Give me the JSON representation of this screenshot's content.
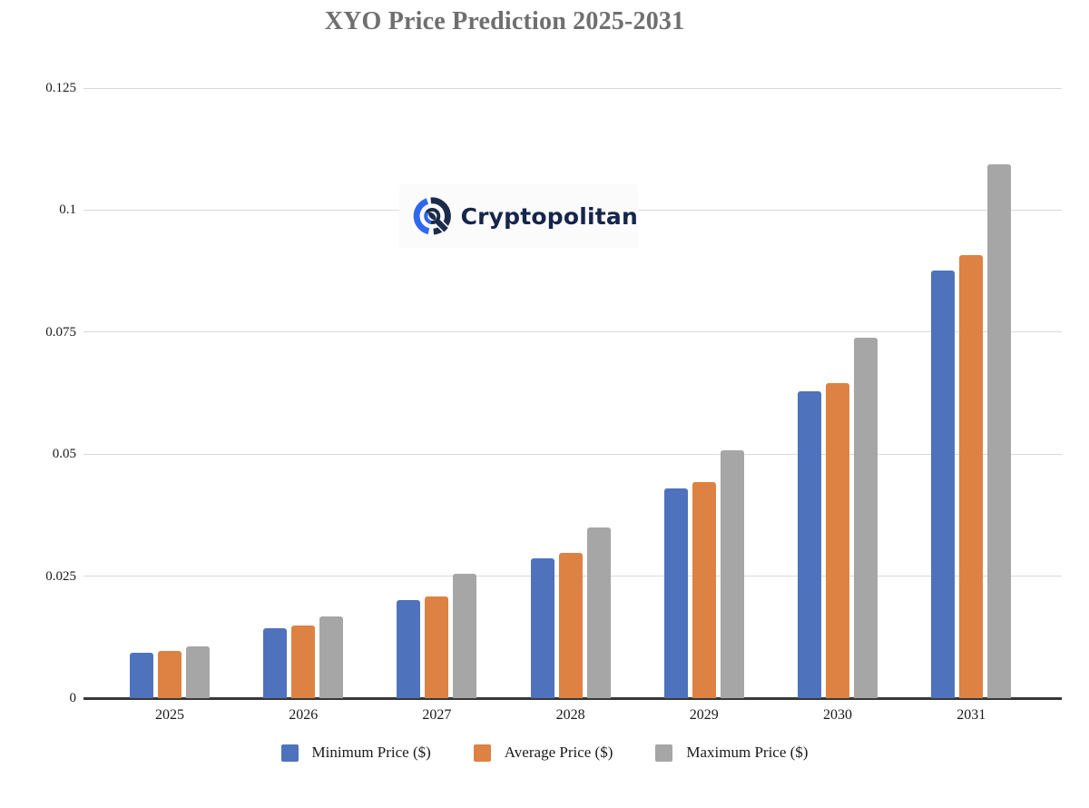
{
  "chart_data": {
    "type": "bar",
    "title": "XYO Price Prediction 2025-2031",
    "categories": [
      "2025",
      "2026",
      "2027",
      "2028",
      "2029",
      "2030",
      "2031"
    ],
    "series": [
      {
        "name": "Minimum Price ($)",
        "color": "#4f72bd",
        "values": [
          0.0093,
          0.0143,
          0.0201,
          0.0287,
          0.0429,
          0.0629,
          0.0877
        ]
      },
      {
        "name": "Average Price ($)",
        "color": "#dd8243",
        "values": [
          0.0097,
          0.0148,
          0.0208,
          0.0298,
          0.0443,
          0.0646,
          0.0908
        ]
      },
      {
        "name": "Maximum Price ($)",
        "color": "#a6a6a6",
        "values": [
          0.0106,
          0.0167,
          0.0255,
          0.035,
          0.0508,
          0.0738,
          0.1094
        ]
      }
    ],
    "xlabel": "",
    "ylabel": "",
    "ylim": [
      0,
      0.125
    ],
    "yticks": [
      0,
      0.025,
      0.05,
      0.075,
      0.1,
      0.125
    ],
    "ytick_labels": [
      "0",
      "0.025",
      "0.05",
      "0.075",
      "0.1",
      "0.125"
    ],
    "grid": "horizontal",
    "legend_position": "bottom",
    "title_color": "#6f6f6f",
    "gridline_color": "#d9d9d9",
    "axis_color": "#383838"
  },
  "watermark": {
    "brand": "Cryptopolitan",
    "icon": "cryptopolitan-q-icon",
    "navy": "#1b2b4a",
    "blue": "#2f66f3"
  }
}
